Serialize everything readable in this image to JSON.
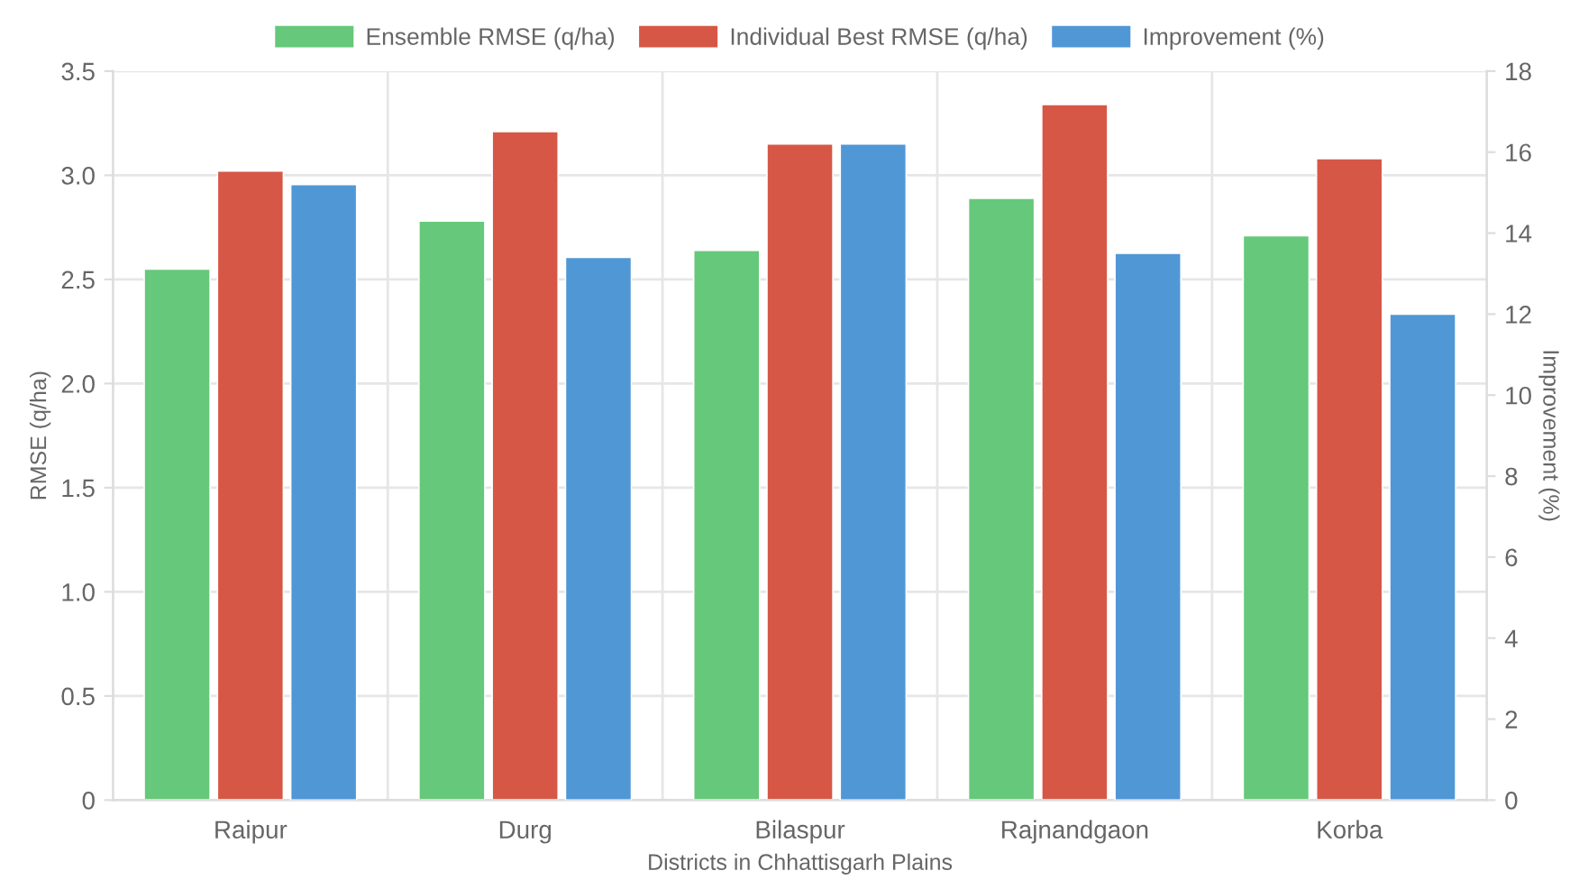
{
  "chart_data": {
    "type": "bar",
    "xlabel": "Districts in Chhattisgarh Plains",
    "ylabel": "RMSE (q/ha)",
    "y2label": "Improvement (%)",
    "categories": [
      "Raipur",
      "Durg",
      "Bilaspur",
      "Rajnandgaon",
      "Korba"
    ],
    "series": [
      {
        "name": "Ensemble RMSE (q/ha)",
        "color": "#66c87a",
        "values": [
          2.55,
          2.78,
          2.64,
          2.89,
          2.71
        ]
      },
      {
        "name": "Individual Best RMSE (q/ha)",
        "color": "#d65745",
        "values": [
          3.02,
          3.21,
          3.15,
          3.34,
          3.08
        ]
      },
      {
        "name": "Improvement (%)",
        "color": "#5097d5",
        "axis": "y2",
        "values": [
          15.2,
          13.4,
          16.2,
          13.5,
          12.0
        ]
      }
    ],
    "ylim": [
      0,
      3.5
    ],
    "yticks": [
      {
        "value": 0,
        "label": "0"
      },
      {
        "value": 0.5,
        "label": "0.5"
      },
      {
        "value": 1.0,
        "label": "1.0"
      },
      {
        "value": 1.5,
        "label": "1.5"
      },
      {
        "value": 2.0,
        "label": "2.0"
      },
      {
        "value": 2.5,
        "label": "2.5"
      },
      {
        "value": 3.0,
        "label": "3.0"
      },
      {
        "value": 3.5,
        "label": "3.5"
      }
    ],
    "y2lim": [
      0,
      18
    ],
    "y2ticks": [
      0,
      2,
      4,
      6,
      8,
      10,
      12,
      14,
      16,
      18
    ],
    "grid": true,
    "legend": "top"
  }
}
